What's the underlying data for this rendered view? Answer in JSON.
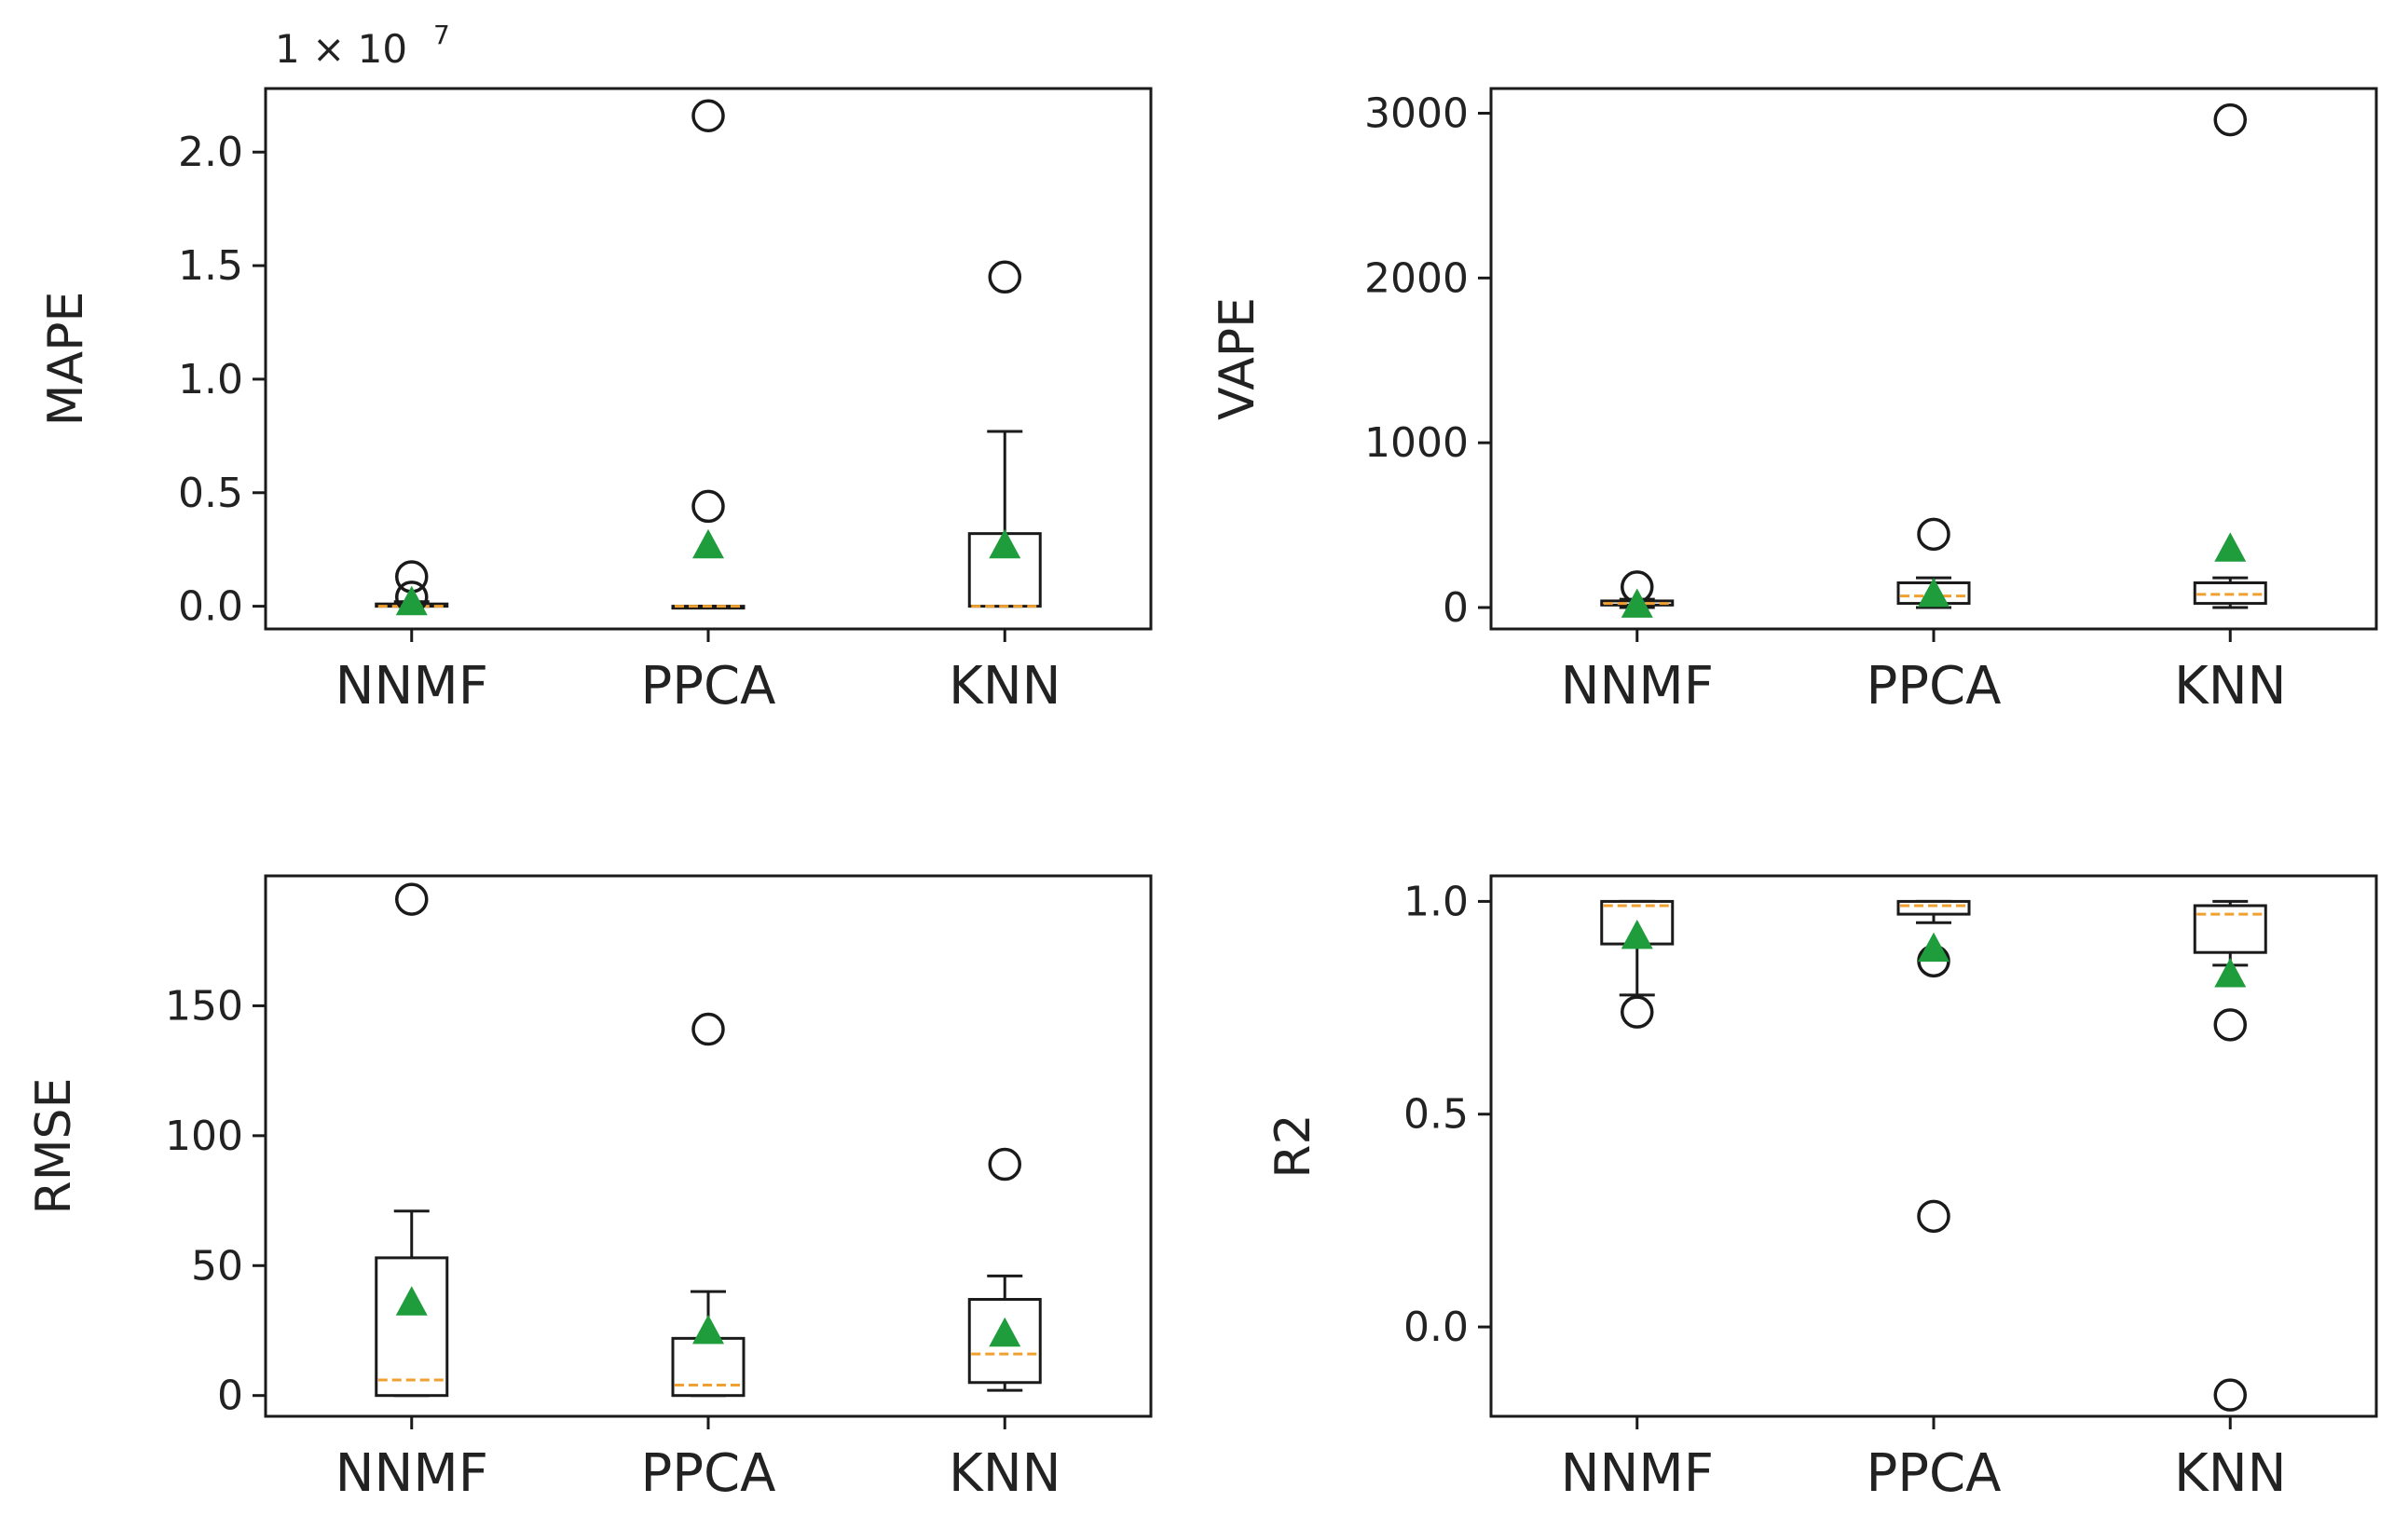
{
  "colors": {
    "box": "#1a1a1a",
    "median": "#f0a030",
    "mean": "#1f9d3c",
    "flier": "#1a1a1a"
  },
  "chart_data": [
    {
      "type": "box",
      "ylabel": "MAPE",
      "multiplier_text": "1 × 10",
      "multiplier_exp": "7",
      "ylim": [
        -0.1,
        2.28
      ],
      "yticks": [
        0.0,
        0.5,
        1.0,
        1.5,
        2.0
      ],
      "ytick_labels": [
        "0.0",
        "0.5",
        "1.0",
        "1.5",
        "2.0"
      ],
      "categories": [
        "NNMF",
        "PPCA",
        "KNN"
      ],
      "boxes": [
        {
          "min": 0.0,
          "q1": 0.0,
          "median": 0.0,
          "q3": 0.01,
          "max": 0.02,
          "mean": 0.02,
          "fliers": [
            0.13,
            0.04
          ]
        },
        {
          "min": 0.0,
          "q1": 0.0,
          "median": 0.0,
          "q3": 0.0,
          "max": 0.0,
          "mean": 0.27,
          "fliers": [
            2.16,
            0.44
          ]
        },
        {
          "min": 0.0,
          "q1": 0.0,
          "median": 0.0,
          "q3": 0.32,
          "max": 0.77,
          "mean": 0.27,
          "fliers": [
            1.45
          ]
        }
      ]
    },
    {
      "type": "box",
      "ylabel": "VAPE",
      "ylim": [
        -130,
        3150
      ],
      "yticks": [
        0,
        1000,
        2000,
        3000
      ],
      "ytick_labels": [
        "0",
        "1000",
        "2000",
        "3000"
      ],
      "categories": [
        "NNMF",
        "PPCA",
        "KNN"
      ],
      "boxes": [
        {
          "min": 0,
          "q1": 15,
          "median": 25,
          "q3": 40,
          "max": 50,
          "mean": 20,
          "fliers": [
            125
          ]
        },
        {
          "min": 0,
          "q1": 25,
          "median": 70,
          "q3": 150,
          "max": 180,
          "mean": 85,
          "fliers": [
            445
          ]
        },
        {
          "min": 0,
          "q1": 25,
          "median": 80,
          "q3": 150,
          "max": 180,
          "mean": 360,
          "fliers": [
            2960
          ]
        }
      ]
    },
    {
      "type": "box",
      "ylabel": "RMSE",
      "ylim": [
        -8,
        200
      ],
      "yticks": [
        0,
        50,
        100,
        150
      ],
      "ytick_labels": [
        "0",
        "50",
        "100",
        "150"
      ],
      "categories": [
        "NNMF",
        "PPCA",
        "KNN"
      ],
      "boxes": [
        {
          "min": 0,
          "q1": 0,
          "median": 6,
          "q3": 53,
          "max": 71,
          "mean": 36,
          "fliers": [
            191
          ]
        },
        {
          "min": 0,
          "q1": 0,
          "median": 4,
          "q3": 22,
          "max": 40,
          "mean": 25,
          "fliers": [
            141
          ]
        },
        {
          "min": 2,
          "q1": 5,
          "median": 16,
          "q3": 37,
          "max": 46,
          "mean": 24,
          "fliers": [
            89
          ]
        }
      ]
    },
    {
      "type": "box",
      "ylabel": "R2",
      "ylim": [
        -0.21,
        1.06
      ],
      "yticks": [
        0.0,
        0.5,
        1.0
      ],
      "ytick_labels": [
        "0.0",
        "0.5",
        "1.0"
      ],
      "categories": [
        "NNMF",
        "PPCA",
        "KNN"
      ],
      "boxes": [
        {
          "min": 0.78,
          "q1": 0.9,
          "median": 0.99,
          "q3": 1.0,
          "max": 1.0,
          "mean": 0.92,
          "fliers": [
            0.74
          ]
        },
        {
          "min": 0.95,
          "q1": 0.97,
          "median": 0.99,
          "q3": 1.0,
          "max": 1.0,
          "mean": 0.89,
          "fliers": [
            0.86,
            0.26
          ]
        },
        {
          "min": 0.85,
          "q1": 0.88,
          "median": 0.97,
          "q3": 0.99,
          "max": 1.0,
          "mean": 0.83,
          "fliers": [
            0.71,
            -0.16
          ]
        }
      ]
    }
  ]
}
